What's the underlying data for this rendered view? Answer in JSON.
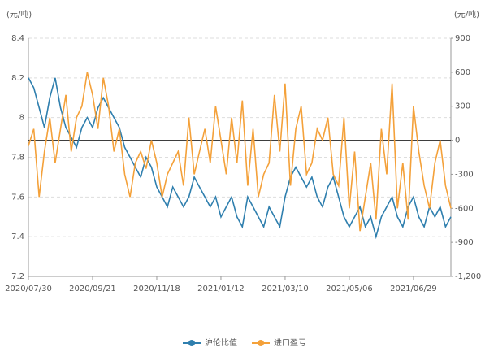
{
  "chart_data": {
    "type": "line",
    "y_label": "(元/吨)",
    "y2_label": "(元/吨)",
    "categories": [
      "2020/07/30",
      null,
      null,
      null,
      null,
      null,
      null,
      null,
      null,
      null,
      null,
      null,
      "2020/09/21",
      null,
      null,
      null,
      null,
      null,
      null,
      null,
      null,
      null,
      null,
      null,
      "2020/11/18",
      null,
      null,
      null,
      null,
      null,
      null,
      null,
      null,
      null,
      null,
      null,
      "2021/01/12",
      null,
      null,
      null,
      null,
      null,
      null,
      null,
      null,
      null,
      null,
      null,
      "2021/03/10",
      null,
      null,
      null,
      null,
      null,
      null,
      null,
      null,
      null,
      null,
      null,
      "2021/05/06",
      null,
      null,
      null,
      null,
      null,
      null,
      null,
      null,
      null,
      null,
      null,
      "2021/06/29",
      null,
      null,
      null,
      null,
      null,
      null,
      null
    ],
    "series": [
      {
        "name": "沪伦比值",
        "color": "#2f7fae",
        "axis": "y",
        "values": [
          8.2,
          8.15,
          8.05,
          7.95,
          8.1,
          8.2,
          8.05,
          7.95,
          7.9,
          7.85,
          7.95,
          8.0,
          7.95,
          8.05,
          8.1,
          8.05,
          8.0,
          7.95,
          7.85,
          7.8,
          7.75,
          7.7,
          7.8,
          7.75,
          7.65,
          7.6,
          7.55,
          7.65,
          7.6,
          7.55,
          7.6,
          7.7,
          7.65,
          7.6,
          7.55,
          7.6,
          7.5,
          7.55,
          7.6,
          7.5,
          7.45,
          7.6,
          7.55,
          7.5,
          7.45,
          7.55,
          7.5,
          7.45,
          7.6,
          7.7,
          7.75,
          7.7,
          7.65,
          7.7,
          7.6,
          7.55,
          7.65,
          7.7,
          7.6,
          7.5,
          7.45,
          7.5,
          7.55,
          7.45,
          7.5,
          7.4,
          7.5,
          7.55,
          7.6,
          7.5,
          7.45,
          7.55,
          7.6,
          7.5,
          7.45,
          7.55,
          7.5,
          7.55,
          7.45,
          7.5
        ]
      },
      {
        "name": "进口盈亏",
        "color": "#f4a13a",
        "axis": "y2",
        "values": [
          -50,
          100,
          -500,
          -100,
          200,
          -200,
          100,
          400,
          -100,
          200,
          300,
          600,
          400,
          100,
          550,
          300,
          -100,
          100,
          -300,
          -500,
          -200,
          -100,
          -250,
          0,
          -200,
          -500,
          -300,
          -200,
          -100,
          -400,
          200,
          -300,
          -100,
          100,
          -200,
          300,
          0,
          -300,
          200,
          -200,
          350,
          -400,
          100,
          -500,
          -300,
          -200,
          400,
          -100,
          500,
          -400,
          100,
          300,
          -300,
          -200,
          100,
          0,
          200,
          -300,
          -400,
          200,
          -600,
          -100,
          -800,
          -500,
          -200,
          -700,
          100,
          -300,
          500,
          -600,
          -200,
          -700,
          300,
          -100,
          -400,
          -600,
          -200,
          0,
          -400,
          -600
        ]
      }
    ],
    "ylim": [
      7.2,
      8.4
    ],
    "yticks": [
      7.2,
      7.4,
      7.6,
      7.8,
      8,
      8.2,
      8.4
    ],
    "y2lim": [
      -1200,
      900
    ],
    "y2ticks": [
      {
        "value": -1200,
        "label": "-1,200"
      },
      -900,
      -600,
      -300,
      0,
      300,
      600,
      900
    ],
    "grid": true,
    "legend": "bottom"
  }
}
